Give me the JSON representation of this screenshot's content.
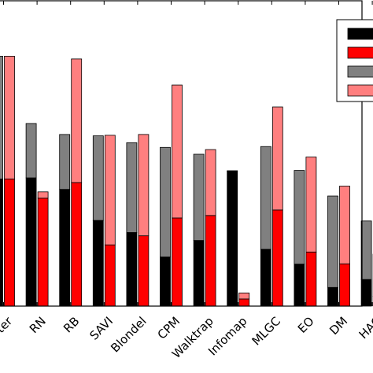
{
  "chart_data": {
    "type": "bar",
    "stacked": true,
    "grid": false,
    "legend": {
      "position": "top-right",
      "entries": [
        {
          "label": "",
          "color": "#000000"
        },
        {
          "label": "",
          "color": "#ff0000"
        },
        {
          "label": "",
          "color": "#808080"
        },
        {
          "label": "",
          "color": "#ff7f7f"
        }
      ]
    },
    "ylim": [
      0,
      1.0
    ],
    "categories": [
      "WCluster",
      "RN",
      "RB",
      "SAVI",
      "Blondel",
      "CPM",
      "Walktrap",
      "Infomap",
      "MLGC",
      "EO",
      "DM",
      "HAC"
    ],
    "groups": [
      {
        "name": "left",
        "base_color": "#000000",
        "top_color": "#808080",
        "base": [
          0.463,
          0.467,
          0.425,
          0.312,
          0.268,
          0.179,
          0.239,
          0.491,
          0.207,
          0.153,
          0.068,
          0.097
        ],
        "total": [
          0.91,
          0.665,
          0.625,
          0.62,
          0.595,
          0.578,
          0.553,
          0.493,
          0.581,
          0.494,
          0.401,
          0.31
        ]
      },
      {
        "name": "right",
        "base_color": "#ff0000",
        "top_color": "#ff7f7f",
        "base": [
          0.463,
          0.393,
          0.45,
          0.223,
          0.256,
          0.321,
          0.33,
          0.026,
          0.35,
          0.197,
          0.154,
          0.036
        ],
        "total": [
          0.91,
          0.416,
          0.9,
          0.622,
          0.625,
          0.805,
          0.57,
          0.048,
          0.725,
          0.543,
          0.437,
          0.189
        ]
      }
    ]
  }
}
